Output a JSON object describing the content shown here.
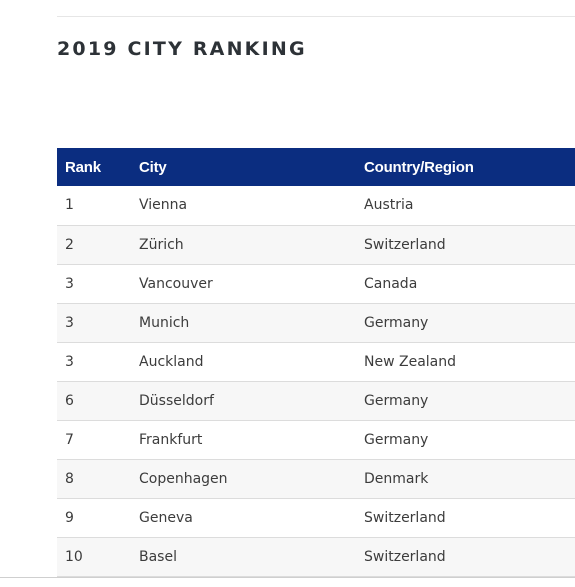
{
  "section": {
    "title": "2019 CITY RANKING"
  },
  "table": {
    "headers": {
      "rank": "Rank",
      "city": "City",
      "country": "Country/Region"
    },
    "rows": [
      {
        "rank": "1",
        "city": "Vienna",
        "country": "Austria"
      },
      {
        "rank": "2",
        "city": "Zürich",
        "country": "Switzerland"
      },
      {
        "rank": "3",
        "city": "Vancouver",
        "country": "Canada"
      },
      {
        "rank": "3",
        "city": "Munich",
        "country": "Germany"
      },
      {
        "rank": "3",
        "city": "Auckland",
        "country": "New Zealand"
      },
      {
        "rank": "6",
        "city": "Düsseldorf",
        "country": "Germany"
      },
      {
        "rank": "7",
        "city": "Frankfurt",
        "country": "Germany"
      },
      {
        "rank": "8",
        "city": "Copenhagen",
        "country": "Denmark"
      },
      {
        "rank": "9",
        "city": "Geneva",
        "country": "Switzerland"
      },
      {
        "rank": "10",
        "city": "Basel",
        "country": "Switzerland"
      }
    ]
  },
  "colors": {
    "header_background": "#0b2d80",
    "header_text": "#ffffff",
    "title_text": "#2d3237",
    "row_alt_background": "#f7f7f7"
  }
}
